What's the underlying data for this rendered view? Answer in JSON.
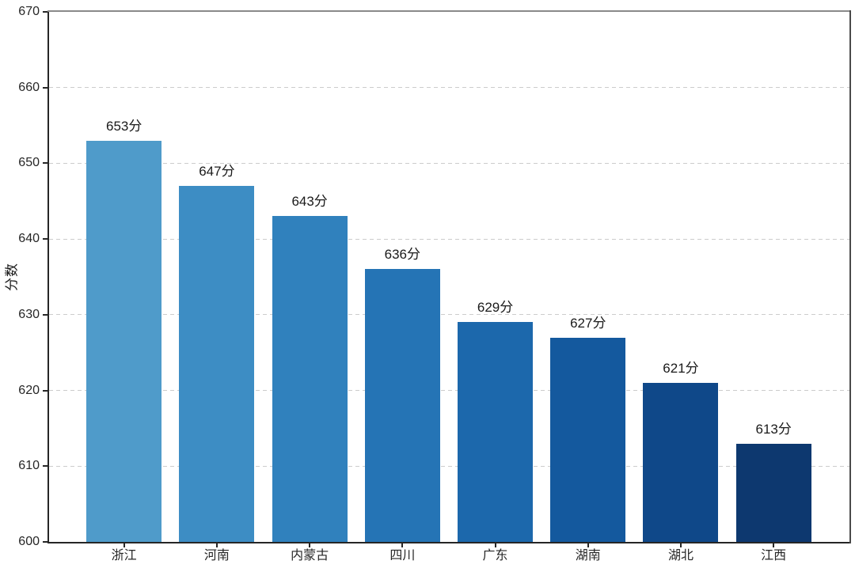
{
  "chart_data": {
    "type": "bar",
    "title": "",
    "categories": [
      "浙江",
      "河南",
      "内蒙古",
      "四川",
      "广东",
      "湖南",
      "湖北",
      "江西"
    ],
    "values": [
      653,
      647,
      643,
      636,
      629,
      627,
      621,
      613
    ],
    "bar_labels": [
      "653分",
      "647分",
      "643分",
      "636分",
      "629分",
      "627分",
      "621分",
      "613分"
    ],
    "bar_colors": [
      "#4f9bca",
      "#3d8dc4",
      "#3081bd",
      "#2574b5",
      "#1c68ac",
      "#14599e",
      "#0f4889",
      "#0d386f"
    ],
    "xlabel": "",
    "ylabel": "分数",
    "ylim": [
      600,
      670
    ],
    "yticks": [
      600,
      610,
      620,
      630,
      640,
      650,
      660,
      670
    ],
    "grid": "horizontal-dashed",
    "legend": "none",
    "colors": {
      "grid": "#cccccc",
      "axis": "#262626",
      "top_spine": "#8a8a8a",
      "right_spine": "#4a4a4a",
      "label_text": "#1a1a1a"
    }
  }
}
